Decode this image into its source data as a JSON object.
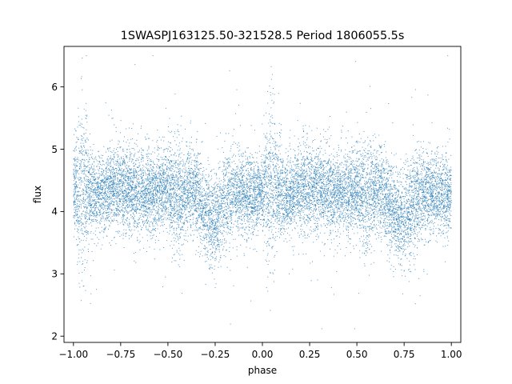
{
  "chart_data": {
    "type": "scatter",
    "title": "1SWASPJ163125.50-321528.5 Period 1806055.5s",
    "xlabel": "phase",
    "ylabel": "flux",
    "xlim": [
      -1.05,
      1.05
    ],
    "ylim": [
      1.9,
      6.65
    ],
    "xticks": [
      -1.0,
      -0.75,
      -0.5,
      -0.25,
      0.0,
      0.25,
      0.5,
      0.75,
      1.0
    ],
    "xtick_labels": [
      "−1.00",
      "−0.75",
      "−0.50",
      "−0.25",
      "0.00",
      "0.25",
      "0.50",
      "0.75",
      "1.00"
    ],
    "yticks": [
      2,
      3,
      4,
      5,
      6
    ],
    "ytick_labels": [
      "2",
      "3",
      "4",
      "5",
      "6"
    ],
    "grid": false,
    "legend": "none",
    "marker_color": "#1f77b4",
    "profile": {
      "note": "light curve repeats with period 1.0 in phase; folded profile (phase in [0,1)) -> median flux, scatter",
      "phase": [
        0.0,
        0.05,
        0.08,
        0.12,
        0.2,
        0.3,
        0.4,
        0.5,
        0.55,
        0.6,
        0.65,
        0.7,
        0.75,
        0.8,
        0.85,
        0.9,
        0.95,
        1.0
      ],
      "flux": [
        4.3,
        4.45,
        4.35,
        4.25,
        4.4,
        4.35,
        4.3,
        4.35,
        4.2,
        4.35,
        4.3,
        3.95,
        3.85,
        4.15,
        4.3,
        4.3,
        4.25,
        4.3
      ],
      "spread": [
        0.32,
        0.75,
        0.4,
        0.3,
        0.35,
        0.35,
        0.32,
        0.35,
        0.45,
        0.35,
        0.35,
        0.35,
        0.38,
        0.4,
        0.35,
        0.32,
        0.32,
        0.32
      ]
    },
    "n_points": 14000
  }
}
